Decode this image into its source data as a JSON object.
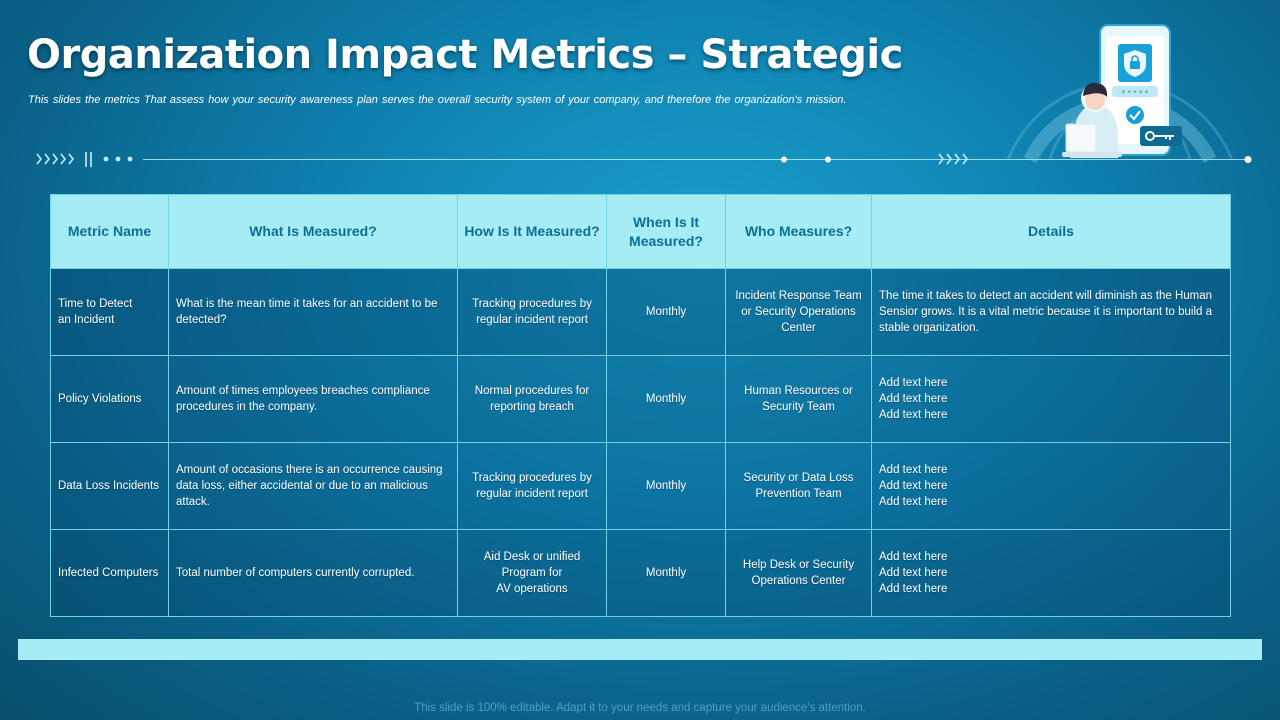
{
  "slide": {
    "title": "Organization Impact Metrics – Strategic",
    "subtitle": "This slides the metrics  That assess  how your security  awareness plan serves  the overall security  system  of your company,  and therefore  the organization's mission.",
    "footer": "This slide is 100% editable. Adapt it to your needs and capture your audience's attention."
  },
  "colors": {
    "background": "#0e7fae",
    "header_fill": "#a6ecf5",
    "header_text": "#0d6e96",
    "border": "#6fd3e8"
  },
  "illustration": {
    "icons": [
      "phone-icon",
      "shield-lock-icon",
      "check-icon",
      "key-icon",
      "person-with-laptop-icon"
    ],
    "password_mask": "* * * * *"
  },
  "table": {
    "headers": [
      "Metric Name",
      "What Is Measured?",
      "How Is It Measured?",
      "When Is It\nMeasured?",
      "Who Measures?",
      "Details"
    ],
    "rows": [
      {
        "metric": "Time to Detect\nan Incident",
        "what": "What is the mean time it takes for an accident to be detected?",
        "how": "Tracking procedures by regular incident report",
        "when": "Monthly",
        "who": "Incident Response Team or Security Operations Center",
        "details": "The time  it takes to detect  an accident will diminish as the Human Sensior grows.  It is a vital metric because it is important to build a stable organization."
      },
      {
        "metric": "Policy Violations",
        "what": "Amount  of times employees breaches compliance procedures in the  company.",
        "how": "Normal procedures for reporting breach",
        "when": "Monthly",
        "who": "Human Resources or Security Team",
        "details": "Add text here\nAdd text here\nAdd text here"
      },
      {
        "metric": "Data Loss Incidents",
        "what": "Amount  of occasions there is an occurrence causing data loss, either accidental or due to an malicious attack.",
        "how": "Tracking procedures by regular incident report",
        "when": "Monthly",
        "who": "Security or Data Loss Prevention Team",
        "details": "Add text here\nAdd text here\nAdd text here"
      },
      {
        "metric": "Infected Computers",
        "what": "Total number  of computers currently corrupted.",
        "how": "Aid Desk or unified\nProgram for\nAV operations",
        "when": "Monthly",
        "who": "Help Desk or Security Operations Center",
        "details": "Add text here\nAdd text here\nAdd text here"
      }
    ]
  }
}
